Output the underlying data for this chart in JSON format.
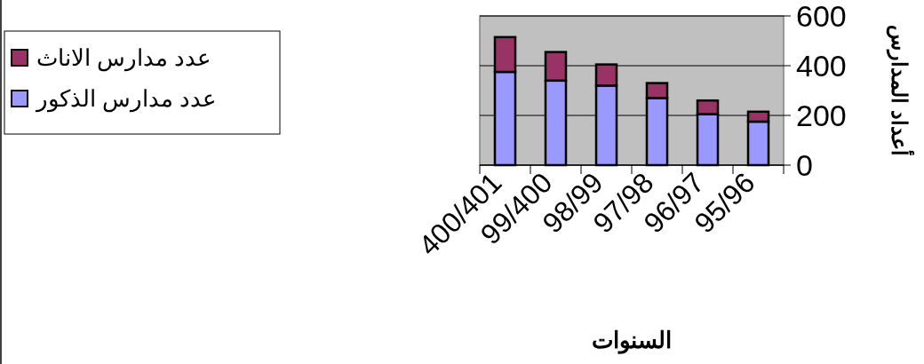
{
  "chart_data": {
    "type": "bar",
    "stacked": true,
    "categories": [
      "400/401",
      "99/400",
      "98/99",
      "97/98",
      "96/97",
      "95/96"
    ],
    "xlabel": "السنوات",
    "ylabel": "أعداد المدارس",
    "series": [
      {
        "name": "عدد مدارس الذكور",
        "color": "#9999ff",
        "values": [
          375,
          340,
          320,
          270,
          205,
          175
        ]
      },
      {
        "name": "عدد مدارس الاناث",
        "color": "#993366",
        "values": [
          140,
          115,
          85,
          60,
          55,
          40
        ]
      }
    ],
    "ylim": [
      0,
      600
    ],
    "yticks": [
      0,
      200,
      400,
      600
    ],
    "grid": "y",
    "legend": "left"
  }
}
